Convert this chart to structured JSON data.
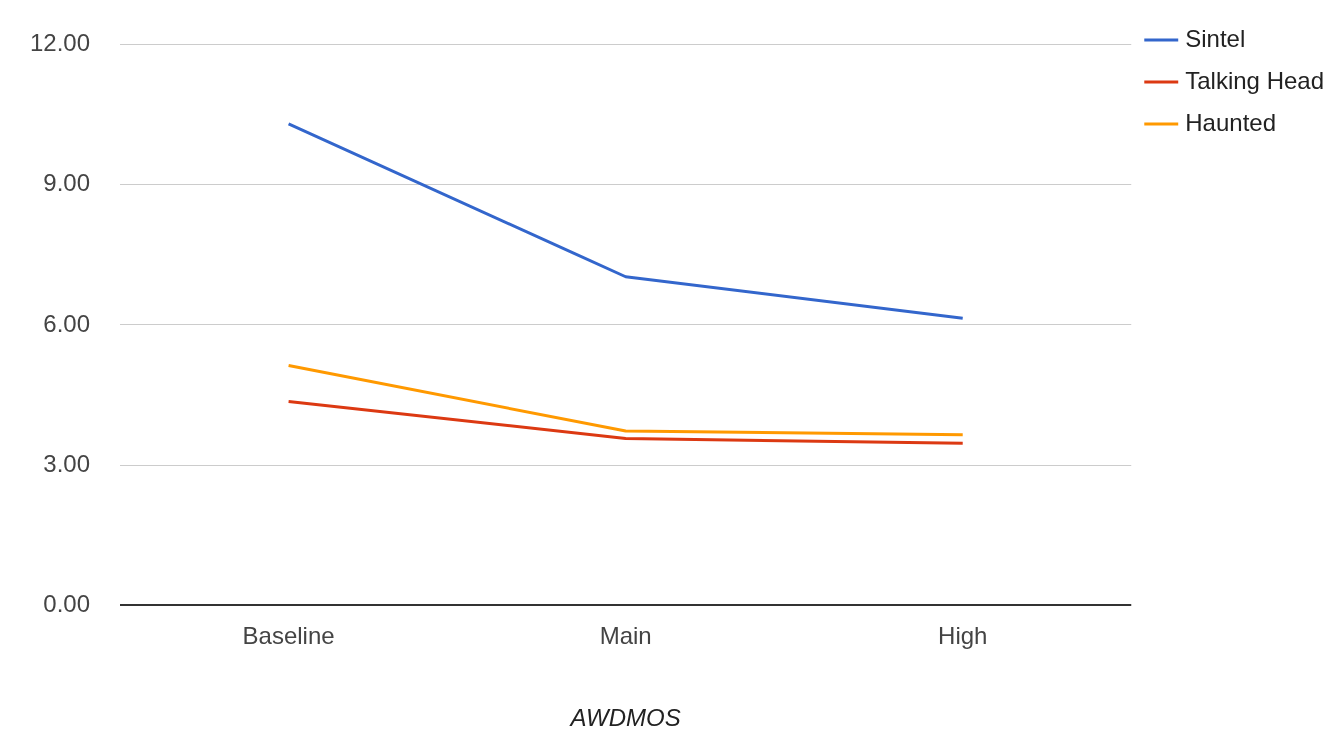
{
  "chart_data": {
    "type": "line",
    "xlabel": "AWDMOS",
    "categories": [
      "Baseline",
      "Main",
      "High"
    ],
    "series": [
      {
        "name": "Sintel",
        "color": "#3366cc",
        "values": [
          10.3,
          7.03,
          6.14
        ]
      },
      {
        "name": "Talking Head",
        "color": "#dc3912",
        "values": [
          4.36,
          3.57,
          3.47
        ]
      },
      {
        "name": "Haunted",
        "color": "#ff9900",
        "values": [
          5.13,
          3.73,
          3.65
        ]
      }
    ],
    "ylim": [
      0,
      12
    ],
    "yticks": [
      {
        "value": 0,
        "label": "0.00"
      },
      {
        "value": 3,
        "label": "3.00"
      },
      {
        "value": 6,
        "label": "6.00"
      },
      {
        "value": 9,
        "label": "9.00"
      },
      {
        "value": 12,
        "label": "12.00"
      }
    ],
    "grid": "y",
    "legend": "top right",
    "marker": "none",
    "line_style": "solid"
  }
}
